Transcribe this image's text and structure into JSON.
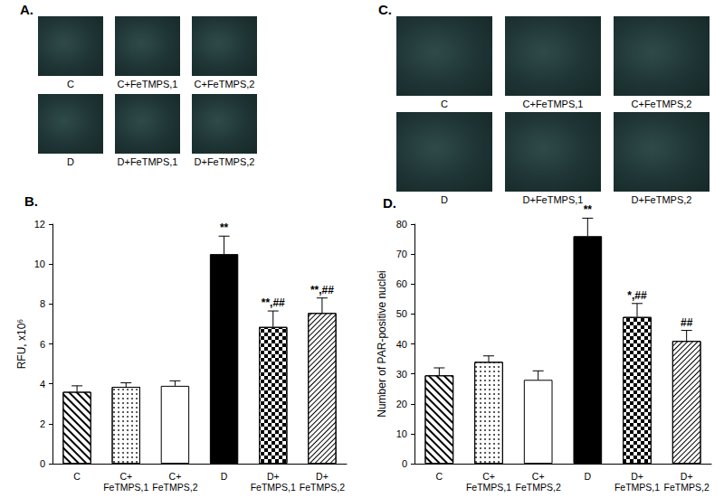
{
  "chart_data": [
    {
      "type": "bar",
      "title": "B.",
      "ylabel": "RFU, x10⁶",
      "categories": [
        "C",
        "C+\nFeTMPS,1",
        "C+\nFeTMPS,2",
        "D",
        "D+\nFeTMPS,1",
        "D+\nFeTMPS,2"
      ],
      "values": [
        3.6,
        3.85,
        3.9,
        10.5,
        6.85,
        7.55
      ],
      "errors": [
        0.3,
        0.2,
        0.25,
        0.9,
        0.8,
        0.75
      ],
      "annotations": [
        null,
        null,
        null,
        "**",
        "**,##",
        "**,##"
      ],
      "colors": [
        "#ffffff",
        "#ffffff",
        "#ffffff",
        "#000000",
        "#ffffff",
        "#ffffff"
      ],
      "ylim": [
        0,
        12
      ],
      "yticks": [
        0,
        2,
        4,
        6,
        8,
        10,
        12
      ],
      "grid": false
    },
    {
      "type": "bar",
      "title": "D.",
      "ylabel": "Number of PAR-positive nuclei",
      "categories": [
        "C",
        "C+\nFeTMPS,1",
        "C+\nFeTMPS,2",
        "D",
        "D+\nFeTMPS,1",
        "D+\nFeTMPS,2"
      ],
      "values": [
        29.5,
        34,
        28,
        76,
        49,
        41
      ],
      "errors": [
        2.5,
        2,
        3,
        6,
        4.5,
        3.5
      ],
      "annotations": [
        null,
        null,
        null,
        "**",
        "*,##",
        "##"
      ],
      "colors": [
        "#ffffff",
        "#ffffff",
        "#ffffff",
        "#000000",
        "#ffffff",
        "#ffffff"
      ],
      "ylim": [
        0,
        80
      ],
      "yticks": [
        0,
        10,
        20,
        30,
        40,
        50,
        60,
        70,
        80
      ],
      "grid": false
    }
  ],
  "image_panels": [
    {
      "title": "A.",
      "captions": [
        "C",
        "C+FeTMPS,1",
        "C+FeTMPS,2",
        "D",
        "D+FeTMPS,1",
        "D+FeTMPS,2"
      ]
    },
    {
      "title": "C.",
      "captions": [
        "C",
        "C+FeTMPS,1",
        "C+FeTMPS,2",
        "D",
        "D+FeTMPS,1",
        "D+FeTMPS,2"
      ]
    }
  ]
}
